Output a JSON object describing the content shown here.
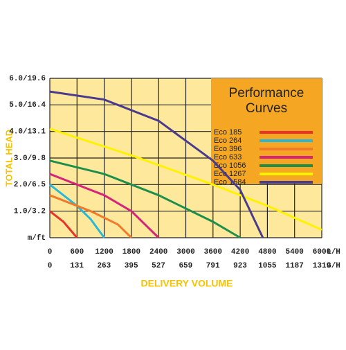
{
  "chart_data": {
    "type": "line",
    "y_title": "TOTAL HEAD",
    "x_title": "DELIVERY VOLUME",
    "x_unit": "L/H",
    "x2_unit": "G/H",
    "legend_title": "Performance Curves",
    "xlim": [
      0,
      6000
    ],
    "xticks": [
      0,
      600,
      1200,
      1800,
      2400,
      3000,
      3600,
      4200,
      4800,
      5400,
      6000
    ],
    "x2lim": [
      0,
      1319
    ],
    "x2ticks": [
      0,
      131,
      263,
      395,
      527,
      659,
      791,
      923,
      1055,
      1187,
      1319
    ],
    "ylim": [
      0,
      6
    ],
    "yticks": [
      {
        "value": 0,
        "label": "m/ft"
      },
      {
        "value": 1,
        "label": "1.0/3.2"
      },
      {
        "value": 2,
        "label": "2.0/6.5"
      },
      {
        "value": 3,
        "label": "3.0/9.8"
      },
      {
        "value": 4,
        "label": "4.0/13.1"
      },
      {
        "value": 5,
        "label": "5.0/16.4"
      },
      {
        "value": 6,
        "label": "6.0/19.6"
      }
    ],
    "grid": true,
    "series": [
      {
        "name": "Eco 185",
        "color": "#e8322a",
        "x": [
          0,
          300,
          600
        ],
        "values": [
          1.0,
          0.6,
          0
        ]
      },
      {
        "name": "Eco 264",
        "color": "#29b8d8",
        "x": [
          0,
          600,
          900,
          1200
        ],
        "values": [
          2.0,
          1.2,
          0.7,
          0
        ]
      },
      {
        "name": "Eco 396",
        "color": "#f07a2a",
        "x": [
          0,
          900,
          1500,
          1800
        ],
        "values": [
          1.6,
          1.0,
          0.5,
          0
        ]
      },
      {
        "name": "Eco 633",
        "color": "#d6247a",
        "x": [
          0,
          1200,
          1800,
          2400
        ],
        "values": [
          2.4,
          1.6,
          1.0,
          0
        ]
      },
      {
        "name": "Eco 1056",
        "color": "#1e8f4a",
        "x": [
          0,
          1200,
          2400,
          3600,
          4200
        ],
        "values": [
          2.9,
          2.4,
          1.6,
          0.6,
          0
        ]
      },
      {
        "name": "Eco 1267",
        "color": "#fff200",
        "x": [
          0,
          1800,
          3600,
          4800,
          6000
        ],
        "values": [
          4.1,
          3.1,
          2.0,
          1.2,
          0.3
        ]
      },
      {
        "name": "Eco 1584",
        "color": "#4a3b8c",
        "x": [
          0,
          1200,
          2400,
          3600,
          4200,
          4700
        ],
        "values": [
          5.5,
          5.2,
          4.4,
          2.9,
          1.8,
          0
        ]
      }
    ]
  }
}
